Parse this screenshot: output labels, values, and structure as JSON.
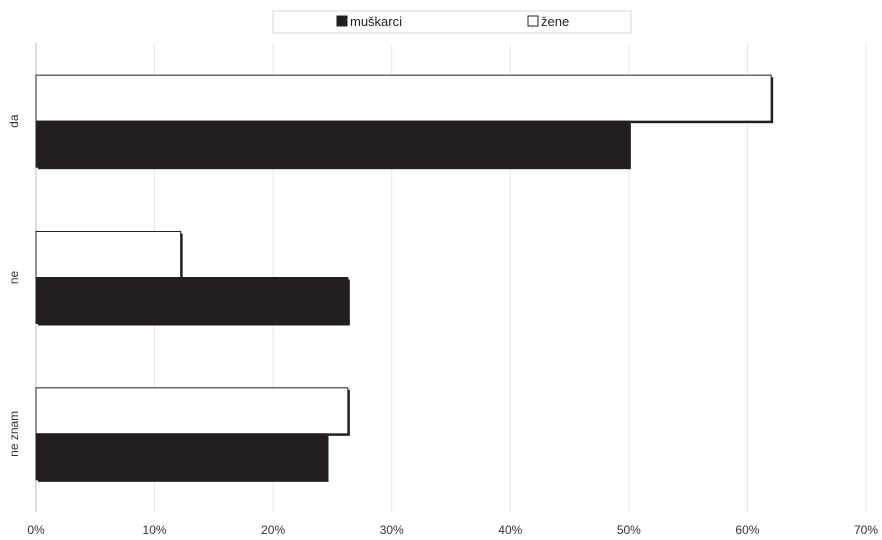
{
  "chart_data": {
    "type": "bar",
    "orientation": "horizontal",
    "categories": [
      "da",
      "ne",
      "ne znam"
    ],
    "series": [
      {
        "name": "muškarci",
        "values": [
          50,
          26.3,
          24.5
        ],
        "color": "#231f20"
      },
      {
        "name": "žene",
        "values": [
          62,
          12.2,
          26.3
        ],
        "color": "#ffffff"
      }
    ],
    "xlim": [
      0,
      70
    ],
    "xticks": [
      0,
      10,
      20,
      30,
      40,
      50,
      60,
      70
    ],
    "tick_suffix": "%",
    "grid": true,
    "legend_position": "top-center"
  }
}
